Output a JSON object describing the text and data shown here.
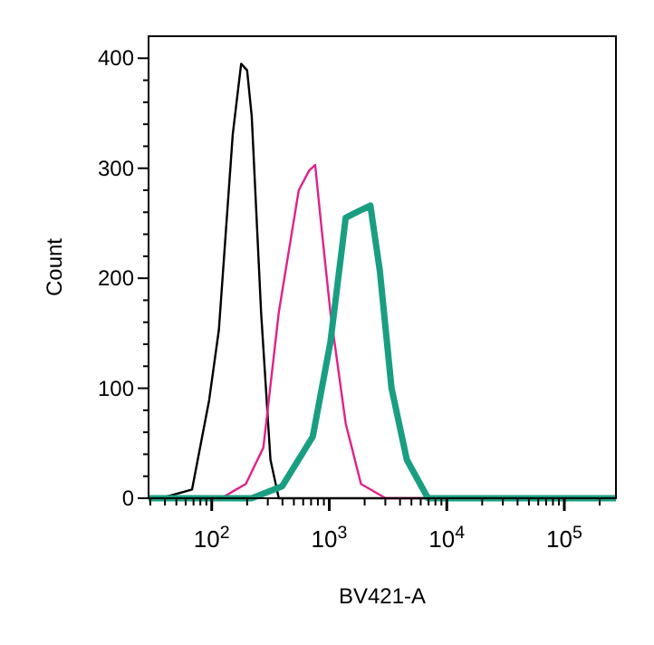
{
  "chart_data": {
    "type": "line",
    "xlabel": "BV421-A",
    "ylabel": "Count",
    "log": "x",
    "xlim": [
      29,
      275000
    ],
    "ylim": [
      0,
      420
    ],
    "xticks": [
      {
        "value": 30,
        "label": null
      },
      {
        "value": 40,
        "label": null
      },
      {
        "value": 50,
        "label": null
      },
      {
        "value": 60,
        "label": null
      },
      {
        "value": 70,
        "label": null
      },
      {
        "value": 80,
        "label": null
      },
      {
        "value": 90,
        "label": null
      },
      {
        "value": 100,
        "label": "10$^{2}$"
      },
      {
        "value": 200,
        "label": null
      },
      {
        "value": 300,
        "label": null
      },
      {
        "value": 400,
        "label": null
      },
      {
        "value": 500,
        "label": null
      },
      {
        "value": 600,
        "label": null
      },
      {
        "value": 700,
        "label": null
      },
      {
        "value": 800,
        "label": null
      },
      {
        "value": 900,
        "label": null
      },
      {
        "value": 1000,
        "label": "10$^{3}$"
      },
      {
        "value": 2000,
        "label": null
      },
      {
        "value": 3000,
        "label": null
      },
      {
        "value": 4000,
        "label": null
      },
      {
        "value": 5000,
        "label": null
      },
      {
        "value": 6000,
        "label": null
      },
      {
        "value": 7000,
        "label": null
      },
      {
        "value": 8000,
        "label": null
      },
      {
        "value": 9000,
        "label": null
      },
      {
        "value": 10000,
        "label": "10$^{4}$"
      },
      {
        "value": 20000,
        "label": null
      },
      {
        "value": 30000,
        "label": null
      },
      {
        "value": 40000,
        "label": null
      },
      {
        "value": 50000,
        "label": null
      },
      {
        "value": 60000,
        "label": null
      },
      {
        "value": 70000,
        "label": null
      },
      {
        "value": 80000,
        "label": null
      },
      {
        "value": 90000,
        "label": null
      },
      {
        "value": 100000,
        "label": "10$^{5}$"
      },
      {
        "value": 200000,
        "label": null
      }
    ],
    "yticks": [
      0,
      {
        "value": 20,
        "label": null
      },
      {
        "value": 40,
        "label": null
      },
      {
        "value": 60,
        "label": null
      },
      {
        "value": 80,
        "label": null
      },
      100,
      {
        "value": 120,
        "label": null
      },
      {
        "value": 140,
        "label": null
      },
      {
        "value": 160,
        "label": null
      },
      {
        "value": 180,
        "label": null
      },
      200,
      {
        "value": 220,
        "label": null
      },
      {
        "value": 240,
        "label": null
      },
      {
        "value": 260,
        "label": null
      },
      {
        "value": 280,
        "label": null
      },
      300,
      {
        "value": 320,
        "label": null
      },
      {
        "value": 340,
        "label": null
      },
      {
        "value": 360,
        "label": null
      },
      {
        "value": 380,
        "label": null
      },
      400
    ],
    "grid": false,
    "line_style": "solid",
    "series": [
      {
        "color": "#000000",
        "x": [
          29,
          37,
          68,
          95,
          115,
          151,
          178,
          200,
          219,
          263,
          316,
          372,
          275000
        ],
        "values": [
          0,
          0,
          8,
          89,
          153,
          331,
          395,
          389,
          347,
          169,
          35,
          0,
          0
        ]
      },
      {
        "color": "#e0218a",
        "x": [
          29,
          120,
          195,
          275,
          372,
          550,
          676,
          759,
          851,
          1023,
          1380,
          1862,
          3020,
          275000
        ],
        "values": [
          0,
          0,
          13,
          46,
          169,
          280,
          298,
          303,
          250,
          169,
          68,
          13,
          0,
          0
        ]
      },
      {
        "color": "#1a9e82",
        "x": [
          29,
          219,
          398,
          724,
          1023,
          1380,
          1778,
          2239,
          2692,
          3388,
          4571,
          6918,
          275000
        ],
        "values": [
          0,
          0,
          11,
          56,
          142,
          255,
          261,
          266,
          207,
          100,
          35,
          0,
          0
        ]
      }
    ]
  }
}
